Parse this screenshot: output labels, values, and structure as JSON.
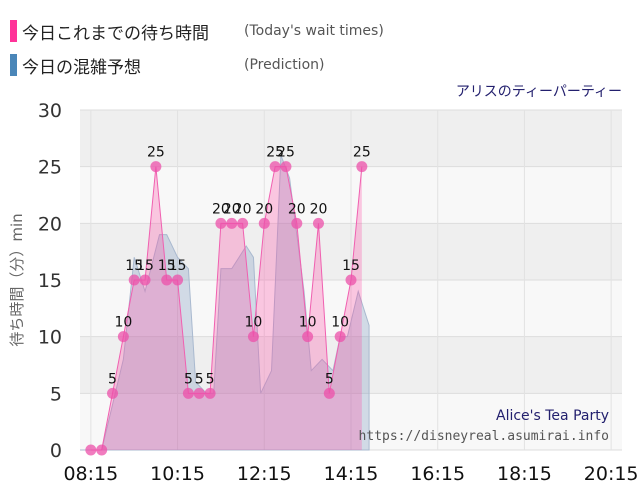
{
  "legend": {
    "actual_label": "今日これまでの待ち時間",
    "actual_sub": "(Today's wait times)",
    "actual_color": "#ff3399",
    "pred_label": "今日の混雑予想",
    "pred_sub": "(Prediction)",
    "pred_color": "#4a86b8"
  },
  "chart_data": {
    "type": "area",
    "title": "アリスのティーパーティー",
    "ylabel": "待ち時間（分）min",
    "ylim": [
      0,
      30
    ],
    "yticks": [
      0,
      5,
      10,
      15,
      20,
      25,
      30
    ],
    "xticks": [
      "08:15",
      "10:15",
      "12:15",
      "14:15",
      "16:15",
      "18:15",
      "20:15"
    ],
    "xticks_min": [
      495,
      615,
      735,
      855,
      975,
      1095,
      1215
    ],
    "xlim_min": [
      480,
      1230
    ],
    "grid": true,
    "watermark_en": "Alice's Tea Party",
    "watermark_url": "https://disneyreal.asumirai.info",
    "series": [
      {
        "values": [
          [
            495,
            0
          ],
          [
            510,
            0
          ],
          [
            525,
            5
          ],
          [
            540,
            10
          ],
          [
            555,
            15
          ],
          [
            570,
            15
          ],
          [
            585,
            25
          ],
          [
            600,
            15
          ],
          [
            615,
            15
          ],
          [
            630,
            5
          ],
          [
            645,
            5
          ],
          [
            660,
            5
          ],
          [
            675,
            20
          ],
          [
            690,
            20
          ],
          [
            705,
            20
          ],
          [
            720,
            10
          ],
          [
            735,
            20
          ],
          [
            750,
            25
          ],
          [
            765,
            25
          ],
          [
            780,
            20
          ],
          [
            795,
            10
          ],
          [
            810,
            20
          ],
          [
            825,
            5
          ],
          [
            840,
            10
          ],
          [
            855,
            15
          ],
          [
            870,
            25
          ]
        ]
      },
      {
        "values": [
          [
            480,
            0
          ],
          [
            510,
            0
          ],
          [
            540,
            8
          ],
          [
            555,
            17
          ],
          [
            570,
            14
          ],
          [
            590,
            19
          ],
          [
            600,
            19
          ],
          [
            615,
            17
          ],
          [
            630,
            16
          ],
          [
            640,
            6
          ],
          [
            655,
            5
          ],
          [
            665,
            5
          ],
          [
            675,
            16
          ],
          [
            690,
            16
          ],
          [
            700,
            17
          ],
          [
            710,
            18
          ],
          [
            720,
            17
          ],
          [
            730,
            5
          ],
          [
            745,
            7
          ],
          [
            758,
            26
          ],
          [
            770,
            24
          ],
          [
            790,
            14
          ],
          [
            800,
            7
          ],
          [
            815,
            8
          ],
          [
            830,
            7
          ],
          [
            840,
            10
          ],
          [
            850,
            10
          ],
          [
            865,
            14
          ],
          [
            880,
            11
          ]
        ]
      }
    ]
  }
}
